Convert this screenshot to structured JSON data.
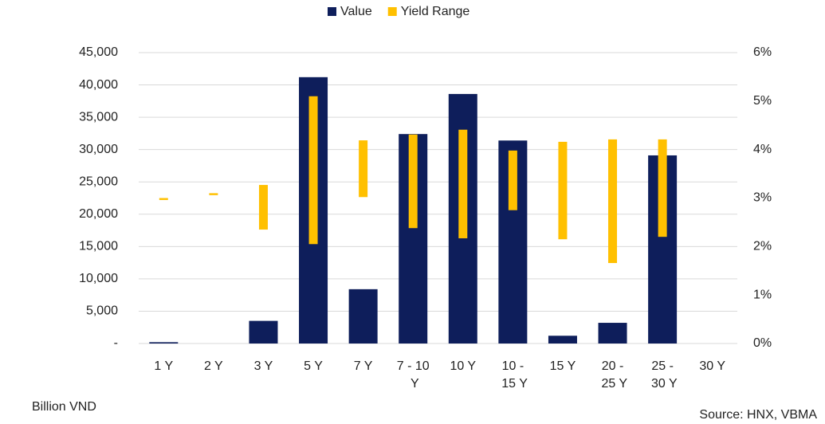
{
  "chart_data": {
    "type": "bar",
    "categories": [
      "1 Y",
      "2 Y",
      "3 Y",
      "5 Y",
      "7 Y",
      "7 - 10 Y",
      "10 Y",
      "10 - 15 Y",
      "15 Y",
      "20 - 25 Y",
      "25 - 30 Y",
      "30 Y"
    ],
    "series": [
      {
        "name": "Value",
        "color": "#0e1e5b",
        "values": [
          200,
          0,
          3500,
          41200,
          8400,
          32400,
          38600,
          31400,
          1200,
          3200,
          29100,
          0
        ]
      },
      {
        "name": "Yield Range",
        "color": "#ffc000",
        "axis": "y2",
        "type": "range",
        "values": [
          [
            2.96,
            3.0
          ],
          [
            3.06,
            3.1
          ],
          [
            2.35,
            3.27
          ],
          [
            2.05,
            5.1
          ],
          [
            3.02,
            4.19
          ],
          [
            2.38,
            4.31
          ],
          [
            2.17,
            4.41
          ],
          [
            2.75,
            3.98
          ],
          [
            2.15,
            4.16
          ],
          [
            1.66,
            4.21
          ],
          [
            2.2,
            4.21
          ],
          null
        ]
      }
    ],
    "ylim": [
      0,
      45000
    ],
    "yticks": [
      {
        "value": 0,
        "label": "-"
      },
      {
        "value": 5000,
        "label": "5,000"
      },
      {
        "value": 10000,
        "label": "10,000"
      },
      {
        "value": 15000,
        "label": "15,000"
      },
      {
        "value": 20000,
        "label": "20,000"
      },
      {
        "value": 25000,
        "label": "25,000"
      },
      {
        "value": 30000,
        "label": "30,000"
      },
      {
        "value": 35000,
        "label": "35,000"
      },
      {
        "value": 40000,
        "label": "40,000"
      },
      {
        "value": 45000,
        "label": "45,000"
      }
    ],
    "y2lim": [
      0,
      6
    ],
    "y2ticks": [
      {
        "value": 0,
        "label": "0%"
      },
      {
        "value": 1,
        "label": "1%"
      },
      {
        "value": 2,
        "label": "2%"
      },
      {
        "value": 3,
        "label": "3%"
      },
      {
        "value": 4,
        "label": "4%"
      },
      {
        "value": 5,
        "label": "5%"
      },
      {
        "value": 6,
        "label": "6%"
      }
    ],
    "grid": true,
    "legend": "top",
    "y_label": "Billion VND",
    "source": "Source: HNX, VBMA"
  }
}
